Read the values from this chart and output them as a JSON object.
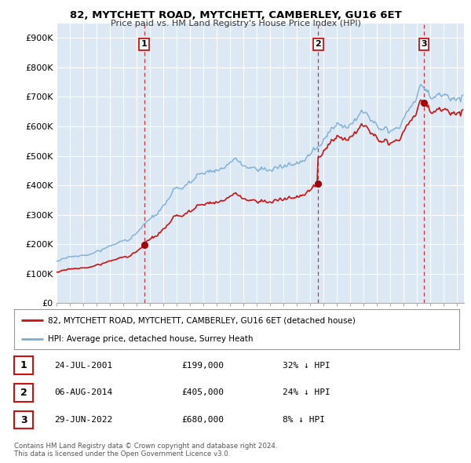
{
  "title": "82, MYTCHETT ROAD, MYTCHETT, CAMBERLEY, GU16 6ET",
  "subtitle": "Price paid vs. HM Land Registry's House Price Index (HPI)",
  "ylim": [
    0,
    950000
  ],
  "yticks": [
    0,
    100000,
    200000,
    300000,
    400000,
    500000,
    600000,
    700000,
    800000,
    900000
  ],
  "ytick_labels": [
    "£0",
    "£100K",
    "£200K",
    "£300K",
    "£400K",
    "£500K",
    "£600K",
    "£700K",
    "£800K",
    "£900K"
  ],
  "xlim_start": 1995.0,
  "xlim_end": 2025.5,
  "background_color": "#ffffff",
  "plot_bg_color": "#dce9f5",
  "grid_color": "#ffffff",
  "hpi_line_color": "#7aaed6",
  "price_line_color": "#cc1111",
  "sale_marker_color": "#aa0000",
  "vline_color": "#cc1111",
  "sales": [
    {
      "date_num": 2001.56,
      "price": 199000,
      "label": "1"
    },
    {
      "date_num": 2014.59,
      "price": 405000,
      "label": "2"
    },
    {
      "date_num": 2022.49,
      "price": 680000,
      "label": "3"
    }
  ],
  "legend_line1": "82, MYTCHETT ROAD, MYTCHETT, CAMBERLEY, GU16 6ET (detached house)",
  "legend_line2": "HPI: Average price, detached house, Surrey Heath",
  "table_rows": [
    {
      "num": "1",
      "date": "24-JUL-2001",
      "price": "£199,000",
      "change": "32% ↓ HPI"
    },
    {
      "num": "2",
      "date": "06-AUG-2014",
      "price": "£405,000",
      "change": "24% ↓ HPI"
    },
    {
      "num": "3",
      "date": "29-JUN-2022",
      "price": "£680,000",
      "change": "8% ↓ HPI"
    }
  ],
  "footnote": "Contains HM Land Registry data © Crown copyright and database right 2024.\nThis data is licensed under the Open Government Licence v3.0."
}
